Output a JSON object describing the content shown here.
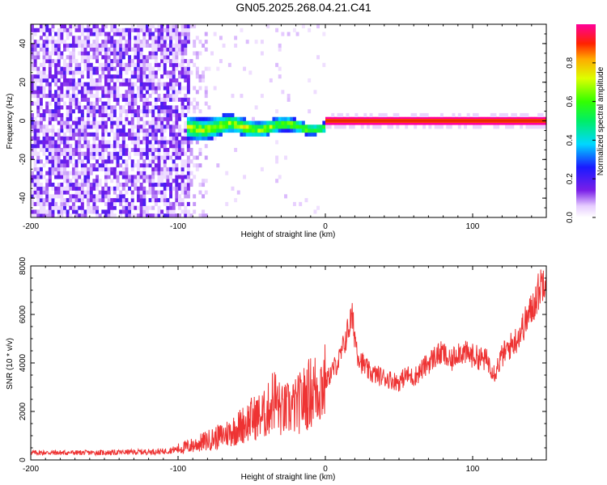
{
  "title": "GN05.2025.268.04.21.C41",
  "chart_data": [
    {
      "type": "heatmap",
      "xlabel": "Height of straight line (km)",
      "ylabel": "Frequency (Hz)",
      "xlim": [
        -200,
        150
      ],
      "ylim": [
        -50,
        50
      ],
      "xticks": [
        -200,
        -100,
        0,
        100
      ],
      "yticks": [
        -40,
        -20,
        0,
        20,
        40
      ],
      "colorbar": {
        "label": "Normalized spectral amplitude",
        "range": [
          0,
          1
        ],
        "ticks": [
          0.0,
          0.2,
          0.4,
          0.6,
          0.8
        ]
      },
      "regions": [
        {
          "x_range": [
            -200,
            -93
          ],
          "description": "broadband noise",
          "amplitude": [
            0.05,
            0.2
          ]
        },
        {
          "x_range": [
            -95,
            0
          ],
          "center_freq_hz": [
            -4,
            -2
          ],
          "amplitude": [
            0.3,
            0.8
          ]
        },
        {
          "x_range": [
            0,
            150
          ],
          "center_freq_hz": 0,
          "amplitude": 1.0
        }
      ]
    },
    {
      "type": "line",
      "xlabel": "Height of straight line (km)",
      "ylabel": "SNR (10 * v/v)",
      "xlim": [
        -200,
        150
      ],
      "ylim": [
        0,
        8000
      ],
      "xticks": [
        -200,
        -100,
        0,
        100
      ],
      "yticks": [
        0,
        2000,
        4000,
        6000,
        8000
      ],
      "color": "#ee3333",
      "series": [
        {
          "x": [
            -200,
            -150,
            -110,
            -100,
            -90,
            -80,
            -70,
            -60,
            -50,
            -40,
            -35,
            -30,
            -20,
            -10,
            0,
            10,
            18,
            22,
            25,
            30,
            40,
            50,
            55,
            60,
            70,
            75,
            80,
            85,
            90,
            100,
            110,
            115,
            120,
            130,
            140,
            150
          ],
          "y": [
            300,
            300,
            350,
            450,
            600,
            800,
            1000,
            1300,
            1700,
            1900,
            2600,
            2000,
            2200,
            2800,
            3200,
            4200,
            5900,
            4400,
            4000,
            3600,
            3400,
            3200,
            3500,
            3400,
            4000,
            4300,
            4400,
            4000,
            4500,
            4300,
            4100,
            3600,
            4300,
            5000,
            6200,
            7800
          ]
        }
      ]
    }
  ]
}
